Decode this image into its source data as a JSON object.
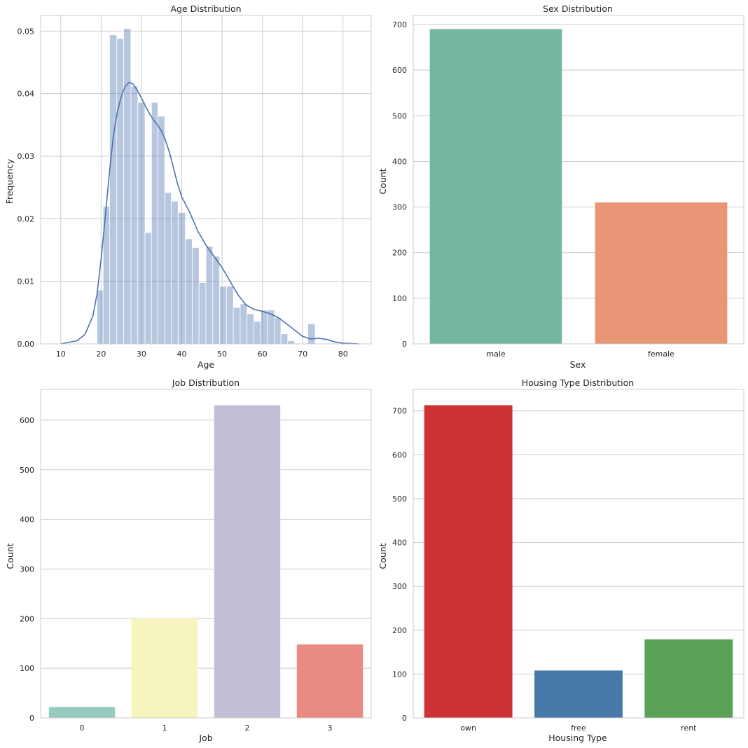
{
  "chart_data": [
    {
      "type": "histogram",
      "title": "Age Distribution",
      "xlabel": "Age",
      "ylabel": "Frequency",
      "xlim": [
        5,
        87
      ],
      "ylim": [
        0,
        0.0525
      ],
      "xticks": [
        "10",
        "20",
        "30",
        "40",
        "50",
        "60",
        "70",
        "80"
      ],
      "yticks": [
        "0.00",
        "0.01",
        "0.02",
        "0.03",
        "0.04",
        "0.05"
      ],
      "grid": true,
      "bar_color": "#4c72b0",
      "line_color": "#4c72b0",
      "bins": {
        "edges": [
          19,
          20.5,
          22.1,
          23.9,
          25.6,
          27.4,
          29.1,
          30.9,
          32.5,
          34.1,
          35.8,
          37.4,
          39.1,
          40.9,
          42.6,
          44.3,
          46.0,
          47.7,
          49.4,
          51.1,
          52.8,
          54.5,
          56.2,
          57.9,
          59.6,
          61.3,
          63.0,
          64.6,
          66.3,
          68.0,
          69.7,
          71.3,
          73.1,
          74.8
        ],
        "density": [
          0.0086,
          0.022,
          0.0494,
          0.0488,
          0.0504,
          0.0412,
          0.0386,
          0.0178,
          0.0386,
          0.0364,
          0.0242,
          0.0228,
          0.021,
          0.0168,
          0.0154,
          0.0098,
          0.0156,
          0.014,
          0.0092,
          0.0092,
          0.0058,
          0.0064,
          0.0048,
          0.0036,
          0.0054,
          0.0054,
          0.0042,
          0.0016,
          0.0005,
          0,
          0,
          0.0032,
          0
        ]
      },
      "kde": {
        "x": [
          10,
          14,
          16,
          18,
          19,
          20,
          21,
          22,
          23,
          24,
          25,
          26,
          27,
          28,
          29,
          30,
          31,
          32,
          33,
          34,
          35,
          36,
          37,
          38,
          39,
          40,
          42,
          44,
          46,
          48,
          50,
          52,
          54,
          56,
          58,
          60,
          62,
          64,
          66,
          68,
          70,
          72,
          74,
          76,
          78,
          80,
          84
        ],
        "y": [
          0.0,
          0.0005,
          0.0015,
          0.0045,
          0.008,
          0.0135,
          0.02,
          0.027,
          0.033,
          0.037,
          0.0395,
          0.0412,
          0.0418,
          0.0415,
          0.0405,
          0.0393,
          0.038,
          0.0368,
          0.0358,
          0.035,
          0.034,
          0.0325,
          0.0305,
          0.028,
          0.0255,
          0.0235,
          0.021,
          0.018,
          0.0158,
          0.014,
          0.0122,
          0.01,
          0.0078,
          0.0062,
          0.0055,
          0.0052,
          0.0048,
          0.0042,
          0.0032,
          0.0022,
          0.0012,
          0.0008,
          0.0009,
          0.0007,
          0.0003,
          0.0001,
          0.0
        ]
      }
    },
    {
      "type": "bar",
      "title": "Sex Distribution",
      "xlabel": "Sex",
      "ylabel": "Count",
      "categories": [
        "male",
        "female"
      ],
      "values": [
        690,
        310
      ],
      "colors": [
        "#75b6a1",
        "#e89675"
      ],
      "ylim": [
        0,
        720
      ],
      "yticks": [
        "0",
        "100",
        "200",
        "300",
        "400",
        "500",
        "600",
        "700"
      ],
      "grid": true
    },
    {
      "type": "bar",
      "title": "Job Distribution",
      "xlabel": "Job",
      "ylabel": "Count",
      "categories": [
        "0",
        "1",
        "2",
        "3"
      ],
      "values": [
        22,
        200,
        630,
        148
      ],
      "colors": [
        "#98cbc0",
        "#f6f5bd",
        "#c2bed5",
        "#e98b81"
      ],
      "ylim": [
        0,
        662
      ],
      "yticks": [
        "0",
        "100",
        "200",
        "300",
        "400",
        "500",
        "600"
      ],
      "grid": true
    },
    {
      "type": "bar",
      "title": "Housing Type Distribution",
      "xlabel": "Housing Type",
      "ylabel": "Count",
      "categories": [
        "own",
        "free",
        "rent"
      ],
      "values": [
        713,
        108,
        179
      ],
      "colors": [
        "#cc3235",
        "#4779a8",
        "#59a257"
      ],
      "ylim": [
        0,
        749
      ],
      "yticks": [
        "0",
        "100",
        "200",
        "300",
        "400",
        "500",
        "600",
        "700"
      ],
      "grid": true
    }
  ]
}
